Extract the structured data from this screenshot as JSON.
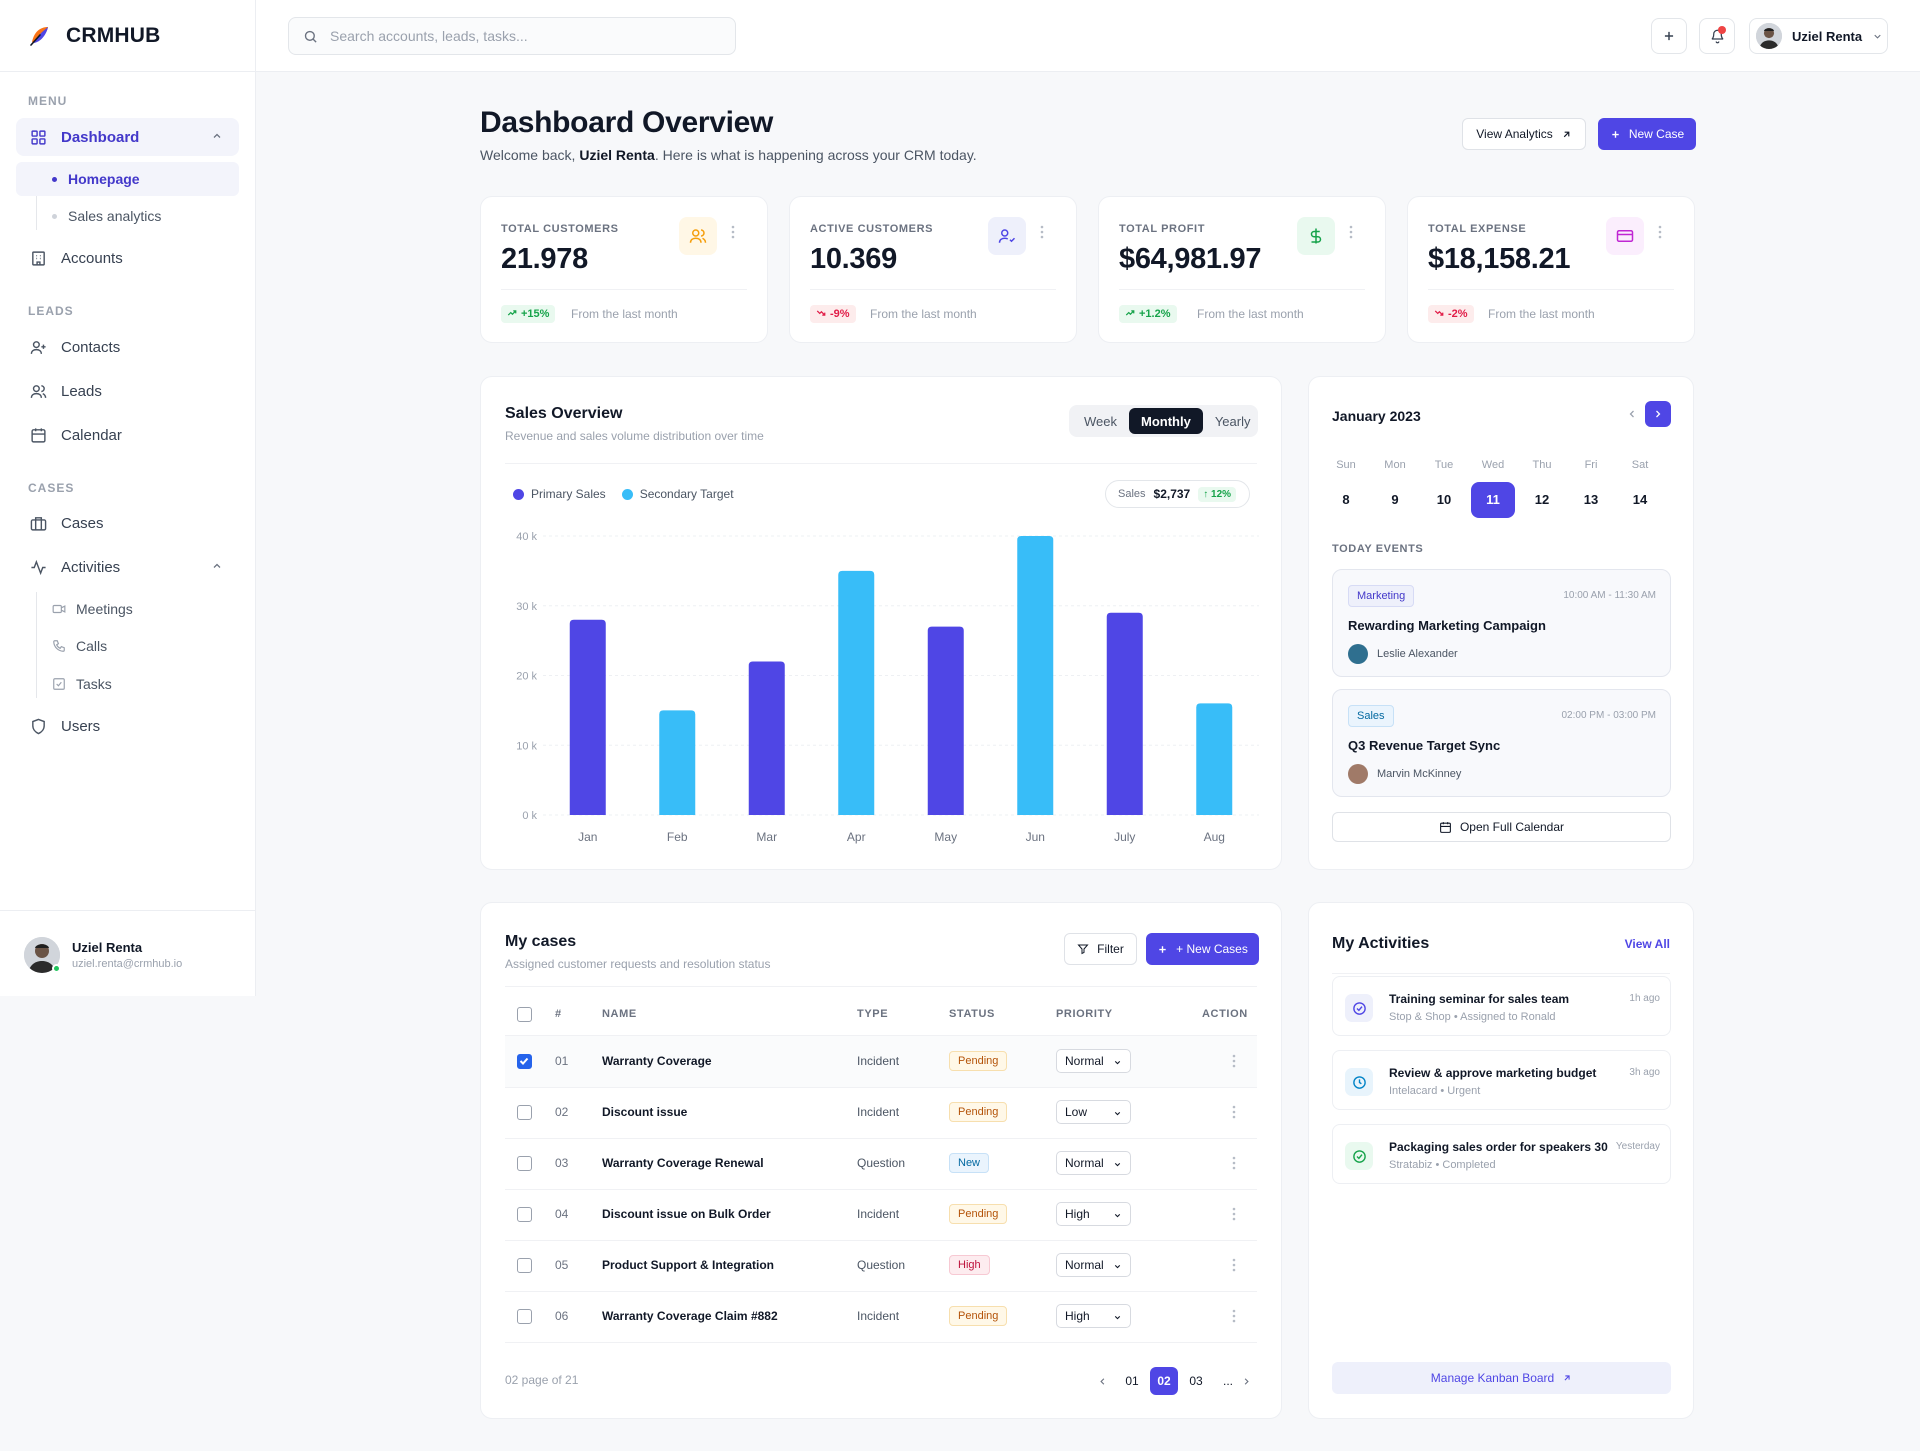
{
  "brand": {
    "name": "CRMHUB",
    "logo_icon": "feather-logo-icon"
  },
  "search": {
    "placeholder": "Search accounts, leads, tasks..."
  },
  "topbar": {
    "user_name": "Uziel Renta"
  },
  "sidebar": {
    "sections": {
      "menu": "MENU",
      "leads": "LEADS",
      "cases": "CASES"
    },
    "items": {
      "dashboard": "Dashboard",
      "homepage": "Homepage",
      "sales_analytics": "Sales analytics",
      "accounts": "Accounts",
      "contacts": "Contacts",
      "leads": "Leads",
      "calendar": "Calendar",
      "cases": "Cases",
      "activities": "Activities",
      "meetings": "Meetings",
      "calls": "Calls",
      "tasks": "Tasks",
      "users": "Users"
    },
    "user": {
      "name": "Uziel Renta",
      "email": "uziel.renta@crmhub.io"
    }
  },
  "header": {
    "title": "Dashboard Overview",
    "welcome_prefix": "Welcome back, ",
    "welcome_name": "Uziel Renta",
    "welcome_suffix": ". Here is what is happening across your CRM today.",
    "view_analytics": "View Analytics",
    "new_case": "New Case"
  },
  "stats": [
    {
      "label": "TOTAL CUSTOMERS",
      "value": "21.978",
      "change": "+15%",
      "trend": "up",
      "foot": "From the last month",
      "color": "#f59e0b",
      "bg": "#fff7e6",
      "icon": "users-icon"
    },
    {
      "label": "ACTIVE CUSTOMERS",
      "value": "10.369",
      "change": "-9%",
      "trend": "down",
      "foot": "From the last month",
      "color": "#4f46e5",
      "bg": "#eef0fb",
      "icon": "user-check-icon"
    },
    {
      "label": "TOTAL PROFIT",
      "value": "$64,981.97",
      "change": "+1.2%",
      "trend": "up",
      "foot": "From the last month",
      "color": "#16a34a",
      "bg": "#e9f9ef",
      "icon": "dollar-icon"
    },
    {
      "label": "TOTAL EXPENSE",
      "value": "$18,158.21",
      "change": "-2%",
      "trend": "down",
      "foot": "From the last month",
      "color": "#c026d3",
      "bg": "#fbeefd",
      "icon": "credit-card-icon"
    }
  ],
  "sales": {
    "title": "Sales Overview",
    "subtitle": "Revenue and sales volume distribution over time",
    "tabs": [
      "Week",
      "Monthly",
      "Yearly"
    ],
    "active_tab": "Monthly",
    "pill_label": "Sales",
    "pill_value": "$2,737",
    "pill_change": "↑ 12%"
  },
  "chart_data": {
    "type": "bar",
    "categories": [
      "Jan",
      "Feb",
      "Mar",
      "Apr",
      "May",
      "Jun",
      "July",
      "Aug"
    ],
    "series": [
      {
        "name": "Primary Sales",
        "color": "#4f46e5"
      },
      {
        "name": "Secondary Target",
        "color": "#38bdf8"
      }
    ],
    "values": [
      28000,
      15000,
      22000,
      35000,
      27000,
      40000,
      29000,
      16000
    ],
    "series_index": [
      0,
      1,
      0,
      1,
      0,
      1,
      0,
      1
    ],
    "yticks": [
      "0 k",
      "10 k",
      "20 k",
      "30 k",
      "40 k"
    ],
    "ylim": [
      0,
      40000
    ],
    "grid": true,
    "legend_position": "top-left"
  },
  "calendar": {
    "title": "January 2023",
    "days": [
      "Sun",
      "Mon",
      "Tue",
      "Wed",
      "Thu",
      "Fri",
      "Sat"
    ],
    "dates": [
      "8",
      "9",
      "10",
      "11",
      "12",
      "13",
      "14"
    ],
    "active_date": "11",
    "events_label": "TODAY EVENTS",
    "events": [
      {
        "tag": "Marketing",
        "time": "10:00 AM - 11:30 AM",
        "title": "Rewarding Marketing Campaign",
        "person": "Leslie Alexander",
        "tag_bg": "#eef0fb",
        "tag_color": "#4338ca",
        "tag_border": "#d7dbf5",
        "avatar_color": "#2f6f8f"
      },
      {
        "tag": "Sales",
        "time": "02:00 PM - 03:00 PM",
        "title": "Q3 Revenue Target Sync",
        "person": "Marvin McKinney",
        "tag_bg": "#eaf4fd",
        "tag_color": "#0369a1",
        "tag_border": "#c7e1f7",
        "avatar_color": "#a07a68"
      }
    ],
    "open_full": "Open Full Calendar"
  },
  "cases": {
    "title": "My cases",
    "subtitle": "Assigned customer requests and resolution status",
    "filter": "Filter",
    "new_cases": "+ New Cases",
    "columns": [
      "#",
      "NAME",
      "TYPE",
      "STATUS",
      "PRIORITY",
      "ACTION"
    ],
    "rows": [
      {
        "num": "01",
        "name": "Warranty Coverage",
        "type": "Incident",
        "status": "Pending",
        "priority": "Normal",
        "checked": true
      },
      {
        "num": "02",
        "name": "Discount issue",
        "type": "Incident",
        "status": "Pending",
        "priority": "Low",
        "checked": false
      },
      {
        "num": "03",
        "name": "Warranty Coverage Renewal",
        "type": "Question",
        "status": "New",
        "priority": "Normal",
        "checked": false
      },
      {
        "num": "04",
        "name": "Discount issue on Bulk Order",
        "type": "Incident",
        "status": "Pending",
        "priority": "High",
        "checked": false
      },
      {
        "num": "05",
        "name": "Product Support & Integration",
        "type": "Question",
        "status": "High",
        "priority": "Normal",
        "checked": false
      },
      {
        "num": "06",
        "name": "Warranty Coverage Claim #882",
        "type": "Incident",
        "status": "Pending",
        "priority": "High",
        "checked": false
      }
    ],
    "pager_info": "02 page of 21",
    "pages": [
      "01",
      "02",
      "03",
      "..."
    ],
    "active_page": "02"
  },
  "activities": {
    "title": "My Activities",
    "view_all": "View All",
    "items": [
      {
        "title": "Training seminar for sales team",
        "sub": "Stop & Shop • Assigned to Ronald",
        "time": "1h ago",
        "icon": "check-circle-icon",
        "color": "#4f46e5",
        "bg": "#eef0fb"
      },
      {
        "title": "Review & approve marketing budget",
        "sub": "Intelacard • Urgent",
        "time": "3h ago",
        "icon": "clock-icon",
        "color": "#0284c7",
        "bg": "#e8f4fc"
      },
      {
        "title": "Packaging sales order for speakers 30",
        "sub": "Stratabiz • Completed",
        "time": "Yesterday",
        "icon": "check-circle-icon",
        "color": "#16a34a",
        "bg": "#e9f9ef"
      }
    ],
    "kanban": "Manage Kanban Board"
  }
}
